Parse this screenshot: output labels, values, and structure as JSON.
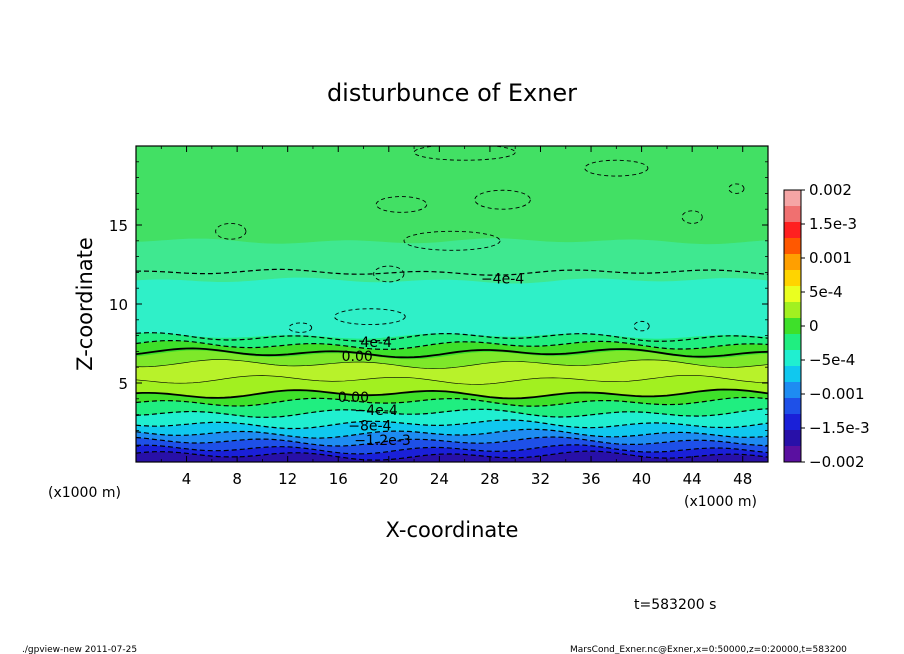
{
  "chart_data": {
    "type": "contour",
    "title": "disturbunce of Exner",
    "xlabel": "X-coordinate",
    "ylabel": "Z-coordinate",
    "x_unit": "(x1000 m)",
    "x_unit_right": "(x1000 m)",
    "xlim": [
      0,
      50
    ],
    "ylim": [
      0,
      20
    ],
    "x_ticks": [
      "4",
      "8",
      "12",
      "16",
      "20",
      "24",
      "28",
      "32",
      "36",
      "40",
      "44",
      "48"
    ],
    "y_ticks": [
      "5",
      "10",
      "15"
    ],
    "time_label": "t=583200 s",
    "colorbar": {
      "range": [
        -0.002,
        0.002
      ],
      "labels": [
        "0.002",
        "1.5e-3",
        "0.001",
        "5e-4",
        "0",
        "−5e-4",
        "−0.001",
        "−1.5e-3",
        "−0.002"
      ],
      "colors": [
        "#f5a5a5",
        "#f07070",
        "#ff2020",
        "#ff5800",
        "#ff9f00",
        "#ffd400",
        "#eaff20",
        "#a2f020",
        "#3ee02a",
        "#20ee80",
        "#20efd0",
        "#10c8ef",
        "#1e8cf2",
        "#1e50e8",
        "#1a20d8",
        "#2810a8",
        "#5a10a0"
      ]
    },
    "bands": [
      {
        "z0": 0.0,
        "z1": 0.4,
        "color": "#2810a8"
      },
      {
        "z0": 0.4,
        "z1": 0.8,
        "color": "#1a20d8"
      },
      {
        "z0": 0.8,
        "z1": 1.3,
        "color": "#1e50e8"
      },
      {
        "z0": 1.3,
        "z1": 1.8,
        "color": "#1e8cf2"
      },
      {
        "z0": 1.8,
        "z1": 2.4,
        "color": "#10c8ef"
      },
      {
        "z0": 2.4,
        "z1": 3.1,
        "color": "#20efd0"
      },
      {
        "z0": 3.1,
        "z1": 3.8,
        "color": "#20ee80"
      },
      {
        "z0": 3.8,
        "z1": 4.3,
        "color": "#3ee02a"
      },
      {
        "z0": 4.3,
        "z1": 5.2,
        "color": "#a2f020"
      },
      {
        "z0": 5.2,
        "z1": 6.2,
        "color": "#b8f22a"
      },
      {
        "z0": 6.2,
        "z1": 6.8,
        "color": "#7ee82a"
      },
      {
        "z0": 6.8,
        "z1": 7.4,
        "color": "#3ee02a"
      },
      {
        "z0": 7.4,
        "z1": 8.0,
        "color": "#20ee80"
      },
      {
        "z0": 8.0,
        "z1": 11.5,
        "color": "#2ff0c8"
      },
      {
        "z0": 11.5,
        "z1": 14.0,
        "color": "#3fe890"
      },
      {
        "z0": 14.0,
        "z1": 20.0,
        "color": "#42e064"
      }
    ],
    "contour_lines": [
      {
        "z": 0.4,
        "style": "dashed"
      },
      {
        "z": 0.8,
        "style": "dashed"
      },
      {
        "z": 1.3,
        "style": "dashed"
      },
      {
        "z": 1.8,
        "style": "dashed"
      },
      {
        "z": 2.4,
        "style": "dashed"
      },
      {
        "z": 3.1,
        "style": "dashed"
      },
      {
        "z": 3.8,
        "style": "dashed"
      },
      {
        "z": 4.3,
        "style": "solid"
      },
      {
        "z": 5.2,
        "style": "thin"
      },
      {
        "z": 6.2,
        "style": "thin"
      },
      {
        "z": 6.9,
        "style": "solid"
      },
      {
        "z": 7.4,
        "style": "dashed"
      },
      {
        "z": 7.9,
        "style": "dashed"
      },
      {
        "z": 12.0,
        "style": "dashed"
      }
    ],
    "contour_labels": [
      {
        "text": "−4e-4",
        "x": 29,
        "z": 11.6
      },
      {
        "text": "4e-4",
        "x": 19,
        "z": 7.6
      },
      {
        "text": "0.00",
        "x": 17.5,
        "z": 6.7
      },
      {
        "text": "0.00",
        "x": 17.2,
        "z": 4.1
      },
      {
        "text": "−4e-4",
        "x": 19,
        "z": 3.3
      },
      {
        "text": "−8e-4",
        "x": 18.5,
        "z": 2.3
      },
      {
        "text": "−1.2e-3",
        "x": 19.5,
        "z": 1.4
      }
    ]
  },
  "footer": {
    "left": "./gpview-new   2011-07-25",
    "right": "MarsCond_Exner.nc@Exner,x=0:50000,z=0:20000,t=583200"
  }
}
